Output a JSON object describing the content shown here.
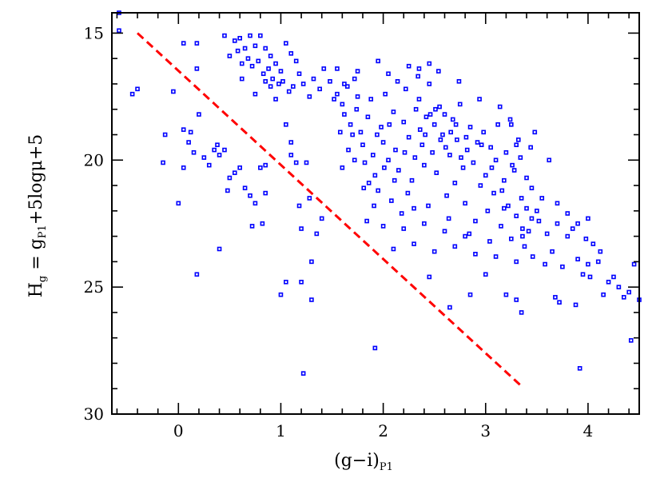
{
  "chart_data": {
    "type": "scatter",
    "xlabel": {
      "main": "(g−i)",
      "sub": "P1"
    },
    "ylabel": {
      "main": "H",
      "sub": "g",
      "rest": " = g",
      "sub2": "P1",
      "tail": "+5logμ+5"
    },
    "xlim": [
      -0.65,
      4.5
    ],
    "ylim": [
      30,
      14.2
    ],
    "y_inverted": true,
    "xticks": [
      0,
      1,
      2,
      3,
      4
    ],
    "xtick_labels": [
      "0",
      "1",
      "2",
      "3",
      "4"
    ],
    "yticks": [
      15,
      20,
      25,
      30
    ],
    "ytick_labels": [
      "15",
      "20",
      "25",
      "30"
    ],
    "grid": false,
    "colors": {
      "points": "#0000ff",
      "line": "#ff0000",
      "axes": "#000000"
    },
    "reference_line": {
      "style": "dashed",
      "x": [
        -0.4,
        3.35
      ],
      "y": [
        15.0,
        28.9
      ]
    },
    "series": [
      {
        "marker": "open-square",
        "points": [
          [
            -0.58,
            14.2
          ],
          [
            -0.58,
            14.9
          ],
          [
            -0.45,
            17.4
          ],
          [
            -0.4,
            17.2
          ],
          [
            -0.15,
            20.1
          ],
          [
            -0.13,
            19.0
          ],
          [
            -0.05,
            17.3
          ],
          [
            0.0,
            21.7
          ],
          [
            0.05,
            15.4
          ],
          [
            0.05,
            18.8
          ],
          [
            0.05,
            20.3
          ],
          [
            0.1,
            19.3
          ],
          [
            0.12,
            18.9
          ],
          [
            0.15,
            19.7
          ],
          [
            0.18,
            15.4
          ],
          [
            0.18,
            16.4
          ],
          [
            0.18,
            24.5
          ],
          [
            0.2,
            18.2
          ],
          [
            0.25,
            19.9
          ],
          [
            0.3,
            20.2
          ],
          [
            0.35,
            19.6
          ],
          [
            0.38,
            19.4
          ],
          [
            0.4,
            19.8
          ],
          [
            0.4,
            23.5
          ],
          [
            0.45,
            19.6
          ],
          [
            0.48,
            21.2
          ],
          [
            0.5,
            20.7
          ],
          [
            0.55,
            20.5
          ],
          [
            0.6,
            20.3
          ],
          [
            0.65,
            21.1
          ],
          [
            0.7,
            21.4
          ],
          [
            0.72,
            22.6
          ],
          [
            0.75,
            21.7
          ],
          [
            0.8,
            20.3
          ],
          [
            0.82,
            22.5
          ],
          [
            0.85,
            21.3
          ],
          [
            0.85,
            20.2
          ],
          [
            1.0,
            25.3
          ],
          [
            1.05,
            24.8
          ],
          [
            1.1,
            19.8
          ],
          [
            1.15,
            20.1
          ],
          [
            1.18,
            21.8
          ],
          [
            1.2,
            22.7
          ],
          [
            1.2,
            24.8
          ],
          [
            1.22,
            28.4
          ],
          [
            1.25,
            20.1
          ],
          [
            1.28,
            21.5
          ],
          [
            1.3,
            25.5
          ],
          [
            1.3,
            24.0
          ],
          [
            1.35,
            22.9
          ],
          [
            1.4,
            22.3
          ],
          [
            1.1,
            19.3
          ],
          [
            1.05,
            18.6
          ],
          [
            0.45,
            15.1
          ],
          [
            0.5,
            15.9
          ],
          [
            0.55,
            15.3
          ],
          [
            0.6,
            15.2
          ],
          [
            0.65,
            15.6
          ],
          [
            0.7,
            15.1
          ],
          [
            0.75,
            15.5
          ],
          [
            0.8,
            15.1
          ],
          [
            0.85,
            15.6
          ],
          [
            0.9,
            15.9
          ],
          [
            0.95,
            16.2
          ],
          [
            1.0,
            16.5
          ],
          [
            1.05,
            15.4
          ],
          [
            1.1,
            15.8
          ],
          [
            1.15,
            16.1
          ],
          [
            0.58,
            15.7
          ],
          [
            0.62,
            16.2
          ],
          [
            0.68,
            16.0
          ],
          [
            0.72,
            16.3
          ],
          [
            0.78,
            16.1
          ],
          [
            0.83,
            16.6
          ],
          [
            0.88,
            16.4
          ],
          [
            0.92,
            16.8
          ],
          [
            0.98,
            17.0
          ],
          [
            1.02,
            16.9
          ],
          [
            1.08,
            17.3
          ],
          [
            1.12,
            17.1
          ],
          [
            1.18,
            16.6
          ],
          [
            1.22,
            17.0
          ],
          [
            1.28,
            17.5
          ],
          [
            1.32,
            16.8
          ],
          [
            1.38,
            17.2
          ],
          [
            1.42,
            16.4
          ],
          [
            1.48,
            16.9
          ],
          [
            1.52,
            17.6
          ],
          [
            0.95,
            17.6
          ],
          [
            0.75,
            17.4
          ],
          [
            0.85,
            16.9
          ],
          [
            0.62,
            16.8
          ],
          [
            0.9,
            17.1
          ],
          [
            1.55,
            16.4
          ],
          [
            1.6,
            17.8
          ],
          [
            1.62,
            18.2
          ],
          [
            1.65,
            17.1
          ],
          [
            1.68,
            18.6
          ],
          [
            1.7,
            19.0
          ],
          [
            1.72,
            16.8
          ],
          [
            1.75,
            17.5
          ],
          [
            1.78,
            18.9
          ],
          [
            1.8,
            19.4
          ],
          [
            1.82,
            20.1
          ],
          [
            1.85,
            18.3
          ],
          [
            1.88,
            17.6
          ],
          [
            1.9,
            19.8
          ],
          [
            1.92,
            20.6
          ],
          [
            1.95,
            21.2
          ],
          [
            1.98,
            18.7
          ],
          [
            2.0,
            19.3
          ],
          [
            2.02,
            17.4
          ],
          [
            2.05,
            20.0
          ],
          [
            2.08,
            21.6
          ],
          [
            2.1,
            18.1
          ],
          [
            2.12,
            19.6
          ],
          [
            2.15,
            20.4
          ],
          [
            2.18,
            22.1
          ],
          [
            2.2,
            18.5
          ],
          [
            2.22,
            17.2
          ],
          [
            2.25,
            19.1
          ],
          [
            2.28,
            20.8
          ],
          [
            2.3,
            21.9
          ],
          [
            2.32,
            18.0
          ],
          [
            2.35,
            17.6
          ],
          [
            2.38,
            19.4
          ],
          [
            2.4,
            20.2
          ],
          [
            2.42,
            18.3
          ],
          [
            2.45,
            17.0
          ],
          [
            2.48,
            19.7
          ],
          [
            2.5,
            18.6
          ],
          [
            2.52,
            20.5
          ],
          [
            2.55,
            17.9
          ],
          [
            2.58,
            19.0
          ],
          [
            2.6,
            18.2
          ],
          [
            2.62,
            21.4
          ],
          [
            2.65,
            19.8
          ],
          [
            2.68,
            18.4
          ],
          [
            2.7,
            20.9
          ],
          [
            2.72,
            19.2
          ],
          [
            2.75,
            17.8
          ],
          [
            2.78,
            20.3
          ],
          [
            2.8,
            21.7
          ],
          [
            2.82,
            19.6
          ],
          [
            2.85,
            18.7
          ],
          [
            2.88,
            20.1
          ],
          [
            2.9,
            22.4
          ],
          [
            2.92,
            19.3
          ],
          [
            2.95,
            21.0
          ],
          [
            2.98,
            18.9
          ],
          [
            3.0,
            20.6
          ],
          [
            3.02,
            22.0
          ],
          [
            3.05,
            19.5
          ],
          [
            3.08,
            21.3
          ],
          [
            3.1,
            20.0
          ],
          [
            3.12,
            18.6
          ],
          [
            3.15,
            22.6
          ],
          [
            3.18,
            20.8
          ],
          [
            3.2,
            19.7
          ],
          [
            3.22,
            21.8
          ],
          [
            3.25,
            23.1
          ],
          [
            3.28,
            20.4
          ],
          [
            3.3,
            22.2
          ],
          [
            3.32,
            19.2
          ],
          [
            3.35,
            21.5
          ],
          [
            3.38,
            23.4
          ],
          [
            3.4,
            20.7
          ],
          [
            3.42,
            22.8
          ],
          [
            3.45,
            21.1
          ],
          [
            3.48,
            18.9
          ],
          [
            3.5,
            22.0
          ],
          [
            1.62,
            17.0
          ],
          [
            1.66,
            19.6
          ],
          [
            1.74,
            18.0
          ],
          [
            1.86,
            20.9
          ],
          [
            1.94,
            19.0
          ],
          [
            2.06,
            18.6
          ],
          [
            2.14,
            16.9
          ],
          [
            2.24,
            21.3
          ],
          [
            2.34,
            16.7
          ],
          [
            2.44,
            21.8
          ],
          [
            2.54,
            16.5
          ],
          [
            2.64,
            22.3
          ],
          [
            2.74,
            16.9
          ],
          [
            2.84,
            22.9
          ],
          [
            2.94,
            17.6
          ],
          [
            3.04,
            23.2
          ],
          [
            3.14,
            17.9
          ],
          [
            3.24,
            18.4
          ],
          [
            3.34,
            19.9
          ],
          [
            3.44,
            19.5
          ],
          [
            2.36,
            18.8
          ],
          [
            2.46,
            18.2
          ],
          [
            2.56,
            19.2
          ],
          [
            2.66,
            18.9
          ],
          [
            2.76,
            19.9
          ],
          [
            2.41,
            19.0
          ],
          [
            2.51,
            18.0
          ],
          [
            2.61,
            19.5
          ],
          [
            2.71,
            18.6
          ],
          [
            2.81,
            19.1
          ],
          [
            2.31,
            19.9
          ],
          [
            2.21,
            19.7
          ],
          [
            2.11,
            20.8
          ],
          [
            2.01,
            20.3
          ],
          [
            1.91,
            21.8
          ],
          [
            1.81,
            21.1
          ],
          [
            2.96,
            19.4
          ],
          [
            3.06,
            20.3
          ],
          [
            3.16,
            21.2
          ],
          [
            3.26,
            20.2
          ],
          [
            3.36,
            22.7
          ],
          [
            3.46,
            23.8
          ],
          [
            1.95,
            16.1
          ],
          [
            2.05,
            16.6
          ],
          [
            2.25,
            16.3
          ],
          [
            2.35,
            16.4
          ],
          [
            2.45,
            16.2
          ],
          [
            1.75,
            16.5
          ],
          [
            1.55,
            17.4
          ],
          [
            1.58,
            18.9
          ],
          [
            1.6,
            20.3
          ],
          [
            1.72,
            20.0
          ],
          [
            1.84,
            22.4
          ],
          [
            2.0,
            22.6
          ],
          [
            2.2,
            22.7
          ],
          [
            2.4,
            22.5
          ],
          [
            2.6,
            22.8
          ],
          [
            2.8,
            23.0
          ],
          [
            2.1,
            23.5
          ],
          [
            2.3,
            23.3
          ],
          [
            2.5,
            23.6
          ],
          [
            2.7,
            23.4
          ],
          [
            2.9,
            23.7
          ],
          [
            3.1,
            23.8
          ],
          [
            3.3,
            24.0
          ],
          [
            3.0,
            24.5
          ],
          [
            2.85,
            25.3
          ],
          [
            3.2,
            25.3
          ],
          [
            3.3,
            25.5
          ],
          [
            3.35,
            26.0
          ],
          [
            2.65,
            25.8
          ],
          [
            2.45,
            24.6
          ],
          [
            3.6,
            22.9
          ],
          [
            3.65,
            23.6
          ],
          [
            3.7,
            22.5
          ],
          [
            3.75,
            24.2
          ],
          [
            3.8,
            23.0
          ],
          [
            3.85,
            22.7
          ],
          [
            3.9,
            23.9
          ],
          [
            3.95,
            24.5
          ],
          [
            4.0,
            24.1
          ],
          [
            4.05,
            23.3
          ],
          [
            4.1,
            24.0
          ],
          [
            3.62,
            20.0
          ],
          [
            3.55,
            21.5
          ],
          [
            3.7,
            21.7
          ],
          [
            3.8,
            22.1
          ],
          [
            3.9,
            22.5
          ],
          [
            4.0,
            22.3
          ],
          [
            3.52,
            22.4
          ],
          [
            3.58,
            24.1
          ],
          [
            3.68,
            25.4
          ],
          [
            3.72,
            25.6
          ],
          [
            3.88,
            25.7
          ],
          [
            3.98,
            23.1
          ],
          [
            4.02,
            24.6
          ],
          [
            4.12,
            23.6
          ],
          [
            4.15,
            25.3
          ],
          [
            4.2,
            24.8
          ],
          [
            4.25,
            24.6
          ],
          [
            4.3,
            25.0
          ],
          [
            4.35,
            25.4
          ],
          [
            4.4,
            25.2
          ],
          [
            4.45,
            24.1
          ],
          [
            4.5,
            25.5
          ],
          [
            4.42,
            27.1
          ],
          [
            3.92,
            28.2
          ],
          [
            1.92,
            27.4
          ],
          [
            3.25,
            18.6
          ],
          [
            3.3,
            19.4
          ],
          [
            3.18,
            21.9
          ],
          [
            3.4,
            21.9
          ],
          [
            3.45,
            22.3
          ],
          [
            3.36,
            23.0
          ]
        ]
      }
    ]
  }
}
